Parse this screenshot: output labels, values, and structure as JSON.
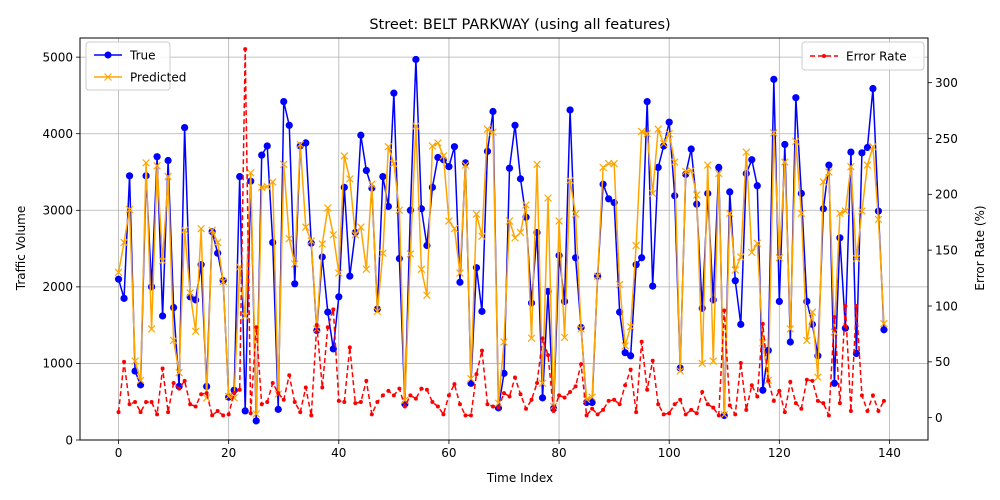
{
  "chart_data": {
    "type": "line",
    "title": "Street: BELT PARKWAY (using all features)",
    "xlabel": "Time Index",
    "ylabel_left": "Traffic Volume",
    "ylabel_right": "Error Rate (%)",
    "xlim": [
      -7,
      147
    ],
    "ylim_left": [
      0,
      5250
    ],
    "ylim_right": [
      -20,
      340
    ],
    "xticks": [
      "0",
      "20",
      "40",
      "60",
      "80",
      "100",
      "120",
      "140"
    ],
    "yticks_left": [
      "0",
      "1000",
      "2000",
      "3000",
      "4000",
      "5000"
    ],
    "yticks_right": [
      "0",
      "50",
      "100",
      "150",
      "200",
      "250",
      "300"
    ],
    "grid": true,
    "legend_left": "top-left",
    "legend_right": "top-right",
    "series": [
      {
        "name": "True",
        "axis": "left",
        "color": "#0000ff",
        "style": "solid-circle",
        "values": [
          2100,
          1850,
          3450,
          900,
          720,
          3450,
          2000,
          3700,
          1620,
          3650,
          1730,
          700,
          4080,
          1870,
          1830,
          2290,
          700,
          2720,
          2440,
          2080,
          560,
          650,
          3440,
          380,
          3380,
          250,
          3720,
          3840,
          2580,
          400,
          4420,
          4110,
          2040,
          3840,
          3880,
          2570,
          1430,
          2390,
          1670,
          1190,
          1870,
          3300,
          2140,
          2710,
          3980,
          3520,
          3290,
          1710,
          3440,
          3050,
          4530,
          2370,
          470,
          3000,
          4970,
          3020,
          2540,
          3300,
          3690,
          3660,
          3570,
          3830,
          2060,
          3620,
          740,
          2250,
          1680,
          3770,
          4290,
          420,
          870,
          3550,
          4110,
          3410,
          2910,
          1790,
          2710,
          550,
          1940,
          410,
          2410,
          1810,
          4310,
          2380,
          1470,
          490,
          490,
          2140,
          3340,
          3150,
          3100,
          1670,
          1140,
          1100,
          2290,
          2380,
          4420,
          2010,
          3560,
          3840,
          4150,
          3190,
          940,
          3470,
          3800,
          3080,
          1720,
          3220,
          1830,
          3560,
          320,
          3240,
          2080,
          1510,
          3480,
          3660,
          3320,
          650,
          1170,
          4710,
          1810,
          3860,
          1280,
          4470,
          3220,
          1810,
          1510,
          1100,
          3020,
          3590,
          740,
          2640,
          1460,
          3760,
          1130,
          3750,
          3820,
          4590,
          2990,
          1440
        ]
      },
      {
        "name": "Predicted",
        "axis": "left",
        "color": "#ffa500",
        "style": "solid-x",
        "values": [
          2190,
          2580,
          3010,
          1030,
          780,
          3620,
          1450,
          3580,
          2340,
          3440,
          1300,
          880,
          2740,
          1920,
          1420,
          2760,
          550,
          2740,
          2580,
          2070,
          570,
          550,
          2260,
          1620,
          3490,
          340,
          3300,
          3310,
          3370,
          600,
          3600,
          2630,
          2300,
          3860,
          2780,
          2600,
          1450,
          2560,
          3030,
          2680,
          2180,
          3710,
          3410,
          2680,
          2780,
          2230,
          3340,
          1680,
          2440,
          3830,
          3610,
          3000,
          520,
          2430,
          4100,
          2230,
          1890,
          3840,
          3880,
          3710,
          2860,
          2760,
          2180,
          3590,
          800,
          2950,
          2660,
          4060,
          4020,
          480,
          1280,
          2860,
          2640,
          2710,
          3070,
          1330,
          3600,
          740,
          3160,
          440,
          2860,
          1340,
          3390,
          2950,
          1450,
          530,
          560,
          2140,
          3560,
          3610,
          3610,
          2030,
          1230,
          1480,
          2540,
          4030,
          4000,
          3220,
          4060,
          3870,
          4000,
          3630,
          900,
          3510,
          3520,
          3200,
          1000,
          3590,
          1030,
          3480,
          330,
          2960,
          2220,
          2390,
          3760,
          2450,
          2570,
          1270,
          780,
          4010,
          2380,
          3630,
          1450,
          3900,
          2960,
          1300,
          1670,
          820,
          3370,
          3500,
          1410,
          2960,
          2990,
          3570,
          2370,
          2990,
          3590,
          3830,
          2880,
          1520
        ]
      },
      {
        "name": "Error Rate",
        "axis": "right",
        "color": "#ff0000",
        "style": "dashed-point",
        "values": [
          5,
          50,
          12,
          14,
          5,
          14,
          14,
          3,
          44,
          5,
          31,
          26,
          33,
          12,
          10,
          21,
          22,
          2,
          6,
          2,
          3,
          22,
          25,
          330,
          4,
          81,
          12,
          14,
          31,
          22,
          16,
          38,
          14,
          5,
          27,
          2,
          83,
          27,
          81,
          97,
          15,
          14,
          63,
          13,
          14,
          33,
          3,
          14,
          20,
          24,
          20,
          26,
          10,
          20,
          17,
          26,
          25,
          14,
          10,
          3,
          20,
          30,
          12,
          2,
          2,
          39,
          60,
          12,
          10,
          9,
          22,
          19,
          36,
          21,
          8,
          16,
          31,
          71,
          56,
          6,
          20,
          18,
          23,
          28,
          48,
          2,
          8,
          3,
          7,
          15,
          16,
          12,
          29,
          43,
          5,
          68,
          25,
          51,
          12,
          3,
          4,
          12,
          16,
          3,
          7,
          4,
          23,
          12,
          9,
          2,
          96,
          11,
          3,
          49,
          7,
          29,
          19,
          84,
          33,
          15,
          24,
          5,
          32,
          13,
          8,
          34,
          33,
          15,
          13,
          2,
          90,
          13,
          100,
          6,
          100,
          20,
          6,
          20,
          6,
          15
        ]
      }
    ]
  }
}
